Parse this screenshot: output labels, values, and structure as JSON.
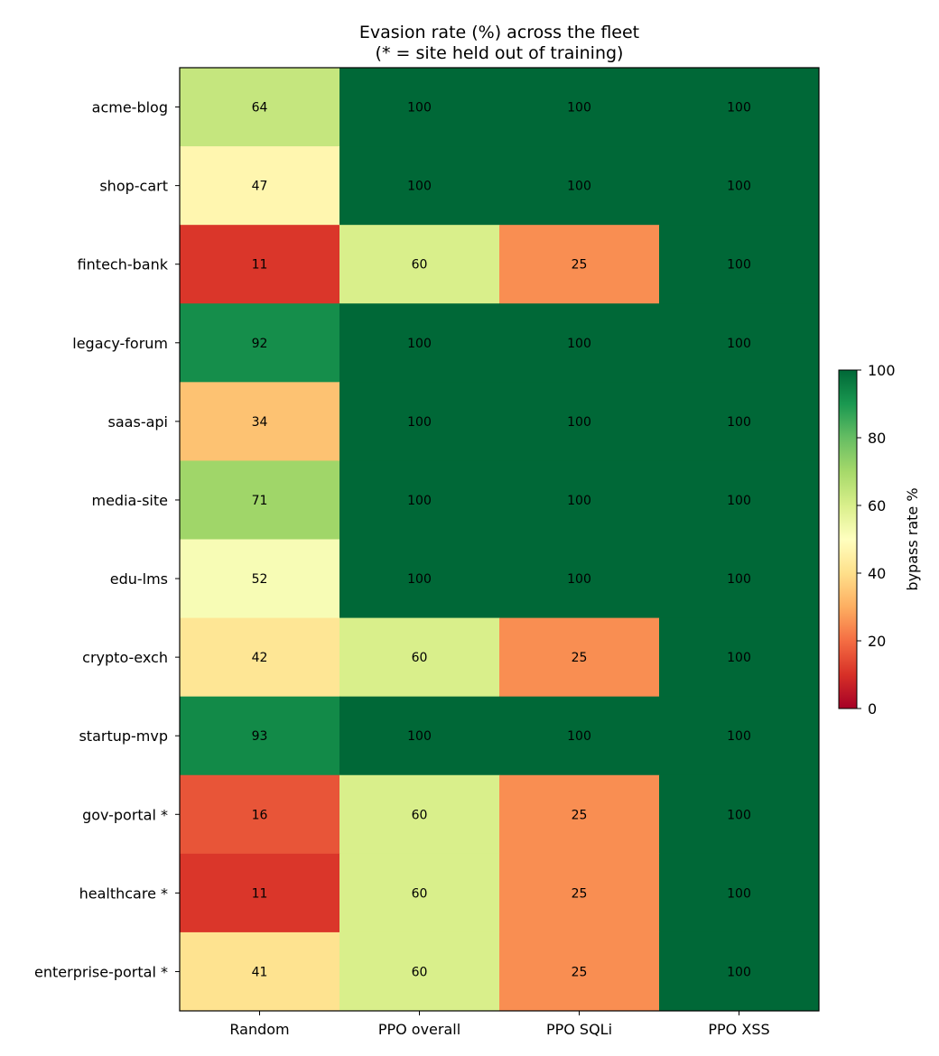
{
  "chart_data": {
    "type": "heatmap",
    "title": "Evasion rate (%) across the fleet",
    "subtitle": "(* = site held out of training)",
    "columns": [
      "Random",
      "PPO overall",
      "PPO SQLi",
      "PPO XSS"
    ],
    "rows": [
      "acme-blog",
      "shop-cart",
      "fintech-bank",
      "legacy-forum",
      "saas-api",
      "media-site",
      "edu-lms",
      "crypto-exch",
      "startup-mvp",
      "gov-portal *",
      "healthcare *",
      "enterprise-portal *"
    ],
    "values": [
      [
        64,
        100,
        100,
        100
      ],
      [
        47,
        100,
        100,
        100
      ],
      [
        11,
        60,
        25,
        100
      ],
      [
        92,
        100,
        100,
        100
      ],
      [
        34,
        100,
        100,
        100
      ],
      [
        71,
        100,
        100,
        100
      ],
      [
        52,
        100,
        100,
        100
      ],
      [
        42,
        60,
        25,
        100
      ],
      [
        93,
        100,
        100,
        100
      ],
      [
        16,
        60,
        25,
        100
      ],
      [
        11,
        60,
        25,
        100
      ],
      [
        41,
        60,
        25,
        100
      ]
    ],
    "colorbar": {
      "label": "bypass rate %",
      "range": [
        0,
        100
      ],
      "ticks": [
        0,
        20,
        40,
        60,
        80,
        100
      ],
      "colormap": "RdYlGn"
    }
  }
}
